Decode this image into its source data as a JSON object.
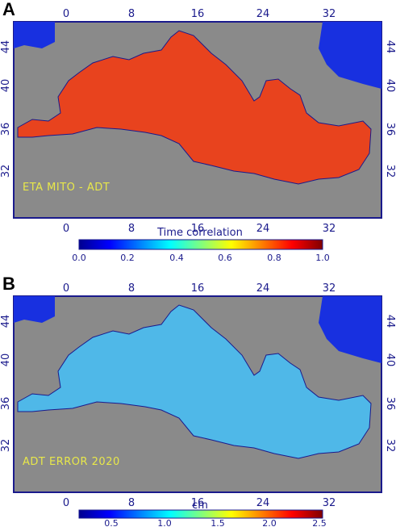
{
  "panels": [
    {
      "letter": "A",
      "inset_label": "ETA MITO - ADT",
      "lon_ticks": [
        "0",
        "8",
        "16",
        "24",
        "32"
      ],
      "lat_ticks": [
        "44",
        "40",
        "36",
        "32"
      ],
      "colorbar": {
        "title": "Time correlation",
        "ticks": [
          "0.0",
          "0.2",
          "0.4",
          "0.6",
          "0.8",
          "1.0"
        ],
        "colormap": "jet"
      },
      "dominant_color": "#e8431e"
    },
    {
      "letter": "B",
      "inset_label": "ADT ERROR 2020",
      "lon_ticks": [
        "0",
        "8",
        "16",
        "24",
        "32"
      ],
      "lat_ticks": [
        "44",
        "40",
        "36",
        "32"
      ],
      "colorbar": {
        "title": "cm",
        "ticks": [
          "0.5",
          "1.0",
          "1.5",
          "2.0",
          "2.5"
        ],
        "colormap": "jet"
      },
      "dominant_color": "#4fb8e8"
    }
  ],
  "colors": {
    "land": "#8a8a8a",
    "black_sea": "#1830e0",
    "frame": "#1a1a8c"
  }
}
